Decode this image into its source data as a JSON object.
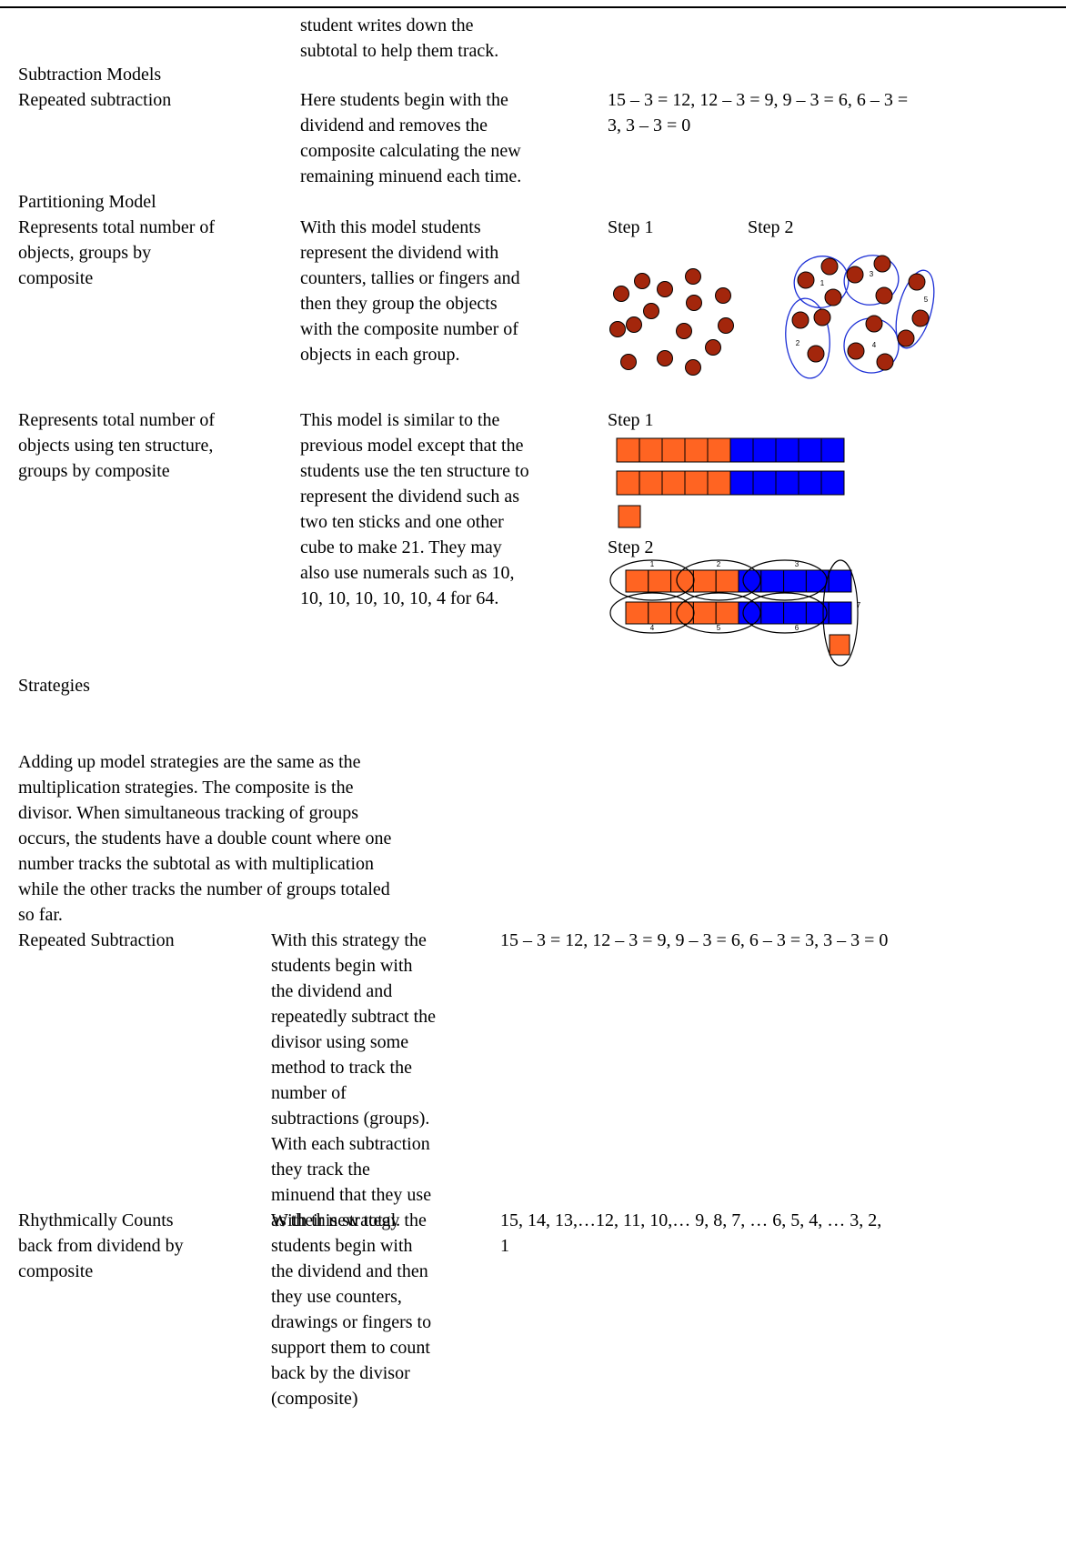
{
  "continuation": [
    "student writes down the",
    "subtotal to help them track."
  ],
  "subtraction_models": {
    "heading": "Subtraction Models",
    "label": [
      "Repeated subtraction"
    ],
    "description": [
      "Here students begin with the",
      "dividend and removes the",
      "composite calculating the new",
      "remaining minuend each time."
    ],
    "example": [
      "15 – 3 = 12, 12 – 3 = 9, 9 – 3 = 6, 6 – 3 =",
      "3, 3 – 3 = 0"
    ]
  },
  "partitioning_model": {
    "heading": "Partitioning Model",
    "label": [
      "Represents total number of",
      "objects, groups by",
      "composite"
    ],
    "description": [
      "With this model students",
      "represent the dividend with",
      "counters, tallies or fingers and",
      "then they group the objects",
      "with the composite number of",
      "objects in each group."
    ],
    "step_1": "Step 1",
    "step_2": "Step 2",
    "group_labels": [
      "1",
      "2",
      "3",
      "4",
      "5"
    ]
  },
  "ten_structure_model": {
    "label": [
      "Represents total number of",
      "objects using ten structure,",
      "groups by composite"
    ],
    "description": [
      "This model is similar to the",
      "previous model except that the",
      "students use the ten structure to",
      "represent the dividend such as",
      "two ten sticks and one other",
      "cube to make 21. They may",
      "also use numerals such as 10,",
      "10, 10, 10, 10, 10, 4 for 64."
    ],
    "step_1": "Step 1",
    "step_2": "Step 2",
    "group_labels": [
      "1",
      "2",
      "3",
      "4",
      "5",
      "6",
      "7"
    ]
  },
  "strategies": {
    "heading": "Strategies",
    "intro": [
      "Adding up model strategies are the same as the",
      "multiplication strategies. The composite is the",
      "divisor. When simultaneous tracking of groups",
      "occurs, the students have a double count where one",
      "number tracks the subtotal as with multiplication",
      "while the other tracks the number of groups totaled",
      "so far."
    ],
    "rows": [
      {
        "label": [
          "Repeated Subtraction"
        ],
        "description": [
          "With this strategy the",
          "students begin with",
          "the dividend and",
          "repeatedly subtract the",
          "divisor using some",
          "method to track the",
          "number of",
          "subtractions (groups).",
          "With each subtraction",
          "they track the",
          "minuend that they use",
          "as their new total."
        ],
        "example": [
          "15 – 3 = 12, 12 – 3 = 9, 9 – 3 = 6, 6 – 3 = 3, 3 – 3 = 0"
        ]
      },
      {
        "label": [
          "Rhythmically Counts",
          "back from dividend by",
          "composite"
        ],
        "description": [
          "With this strategy the",
          "students begin with",
          "the dividend and then",
          "they use counters,",
          "drawings or fingers to",
          "support them to count",
          "back by the divisor",
          "(composite)"
        ],
        "example": [
          "15, 14, 13,…12, 11, 10,… 9, 8, 7, … 6, 5, 4, … 3, 2,",
          "1"
        ]
      }
    ]
  }
}
